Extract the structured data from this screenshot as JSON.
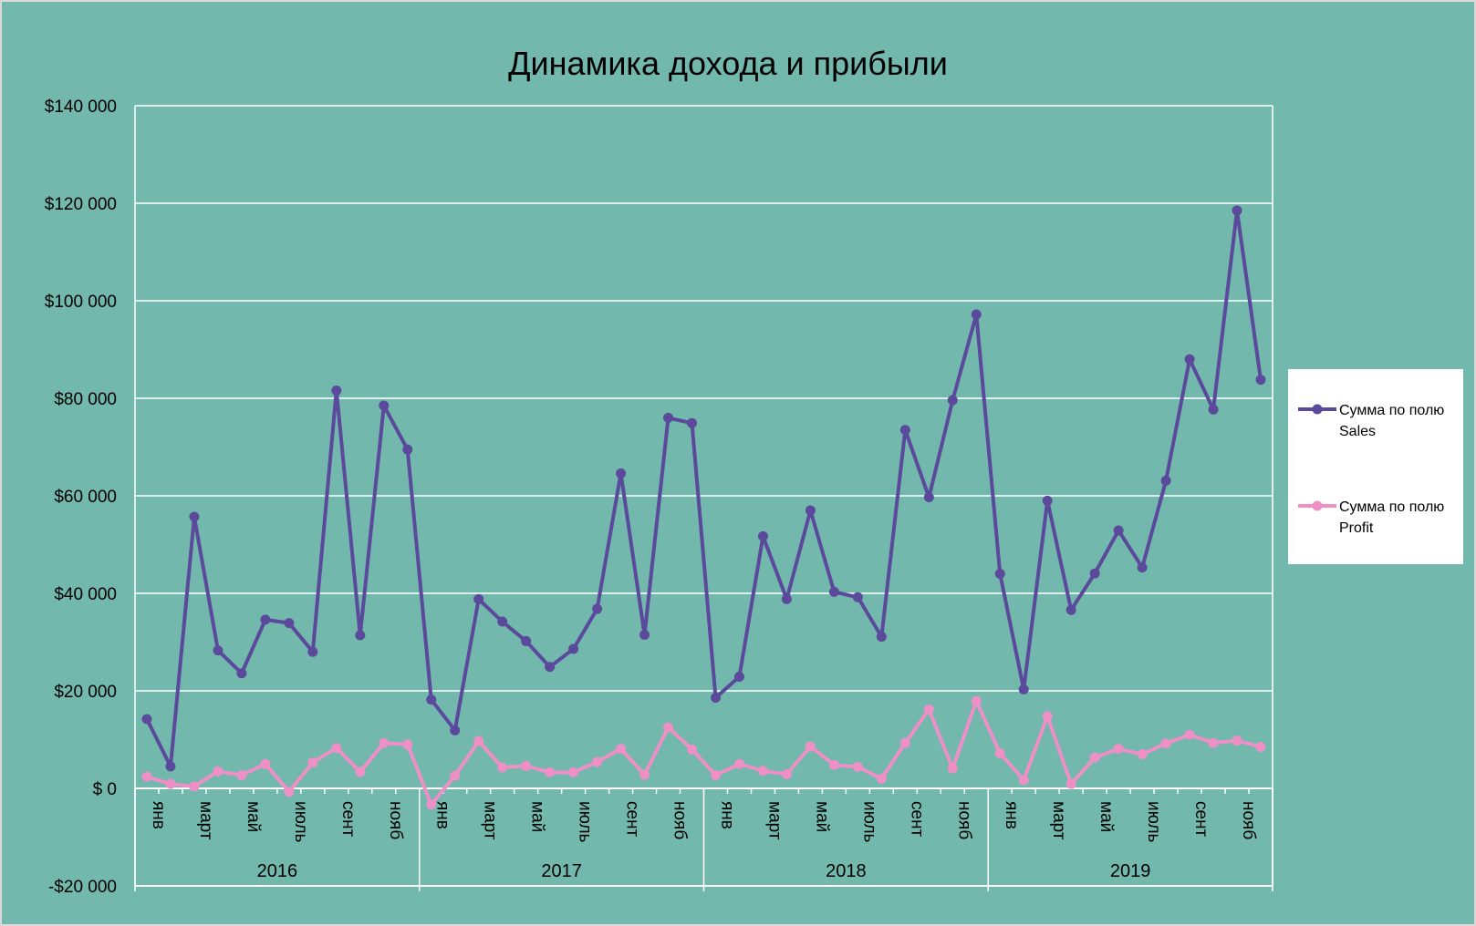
{
  "colors": {
    "background": "#72b8ad",
    "gridline": "#ffffff",
    "sales_line": "#5b4a9b",
    "profit_line": "#ee8fc5",
    "legend_bg": "#ffffff",
    "frame_border": "#d9d9d9"
  },
  "chart_data": {
    "type": "line",
    "title": "Динамика дохода и прибыли",
    "xlabel": "",
    "ylabel": "",
    "ylim": [
      -20000,
      140000
    ],
    "yticks": [
      -20000,
      0,
      20000,
      40000,
      60000,
      80000,
      100000,
      120000,
      140000
    ],
    "ytick_labels": [
      "-$20 000",
      "$ 0",
      "$20 000",
      "$40 000",
      "$60 000",
      "$80 000",
      "$100 000",
      "$120 000",
      "$140 000"
    ],
    "grid": true,
    "legend_position": "right",
    "years": [
      "2016",
      "2017",
      "2018",
      "2019"
    ],
    "month_labels": [
      "янв",
      "",
      "март",
      "",
      "май",
      "",
      "июль",
      "",
      "сент",
      "",
      "нояб",
      ""
    ],
    "series": [
      {
        "name": "Сумма по полю Sales",
        "name_lines": [
          "Сумма по полю",
          "Sales"
        ],
        "values": [
          14200,
          4500,
          55700,
          28300,
          23600,
          34600,
          33900,
          28000,
          81600,
          31400,
          78500,
          69500,
          18200,
          11900,
          38800,
          34200,
          30200,
          24900,
          28600,
          36800,
          64600,
          31500,
          76000,
          74900,
          18600,
          22900,
          51700,
          38800,
          57000,
          40300,
          39200,
          31100,
          73500,
          59700,
          79600,
          97200,
          44000,
          20300,
          59000,
          36600,
          44100,
          52900,
          45300,
          63100,
          88000,
          77700,
          118500,
          83800
        ]
      },
      {
        "name": "Сумма по полю Profit",
        "name_lines": [
          "Сумма по полю",
          "Profit"
        ],
        "values": [
          2400,
          900,
          400,
          3500,
          2700,
          5000,
          -700,
          5300,
          8300,
          3400,
          9300,
          9000,
          -3300,
          2600,
          9700,
          4300,
          4600,
          3300,
          3300,
          5400,
          8100,
          2800,
          12500,
          8000,
          2700,
          5000,
          3600,
          2900,
          8600,
          4800,
          4400,
          2000,
          9300,
          16200,
          4100,
          17900,
          7200,
          1700,
          14800,
          900,
          6300,
          8100,
          7000,
          9200,
          11000,
          9300,
          9800,
          8500
        ]
      }
    ]
  }
}
